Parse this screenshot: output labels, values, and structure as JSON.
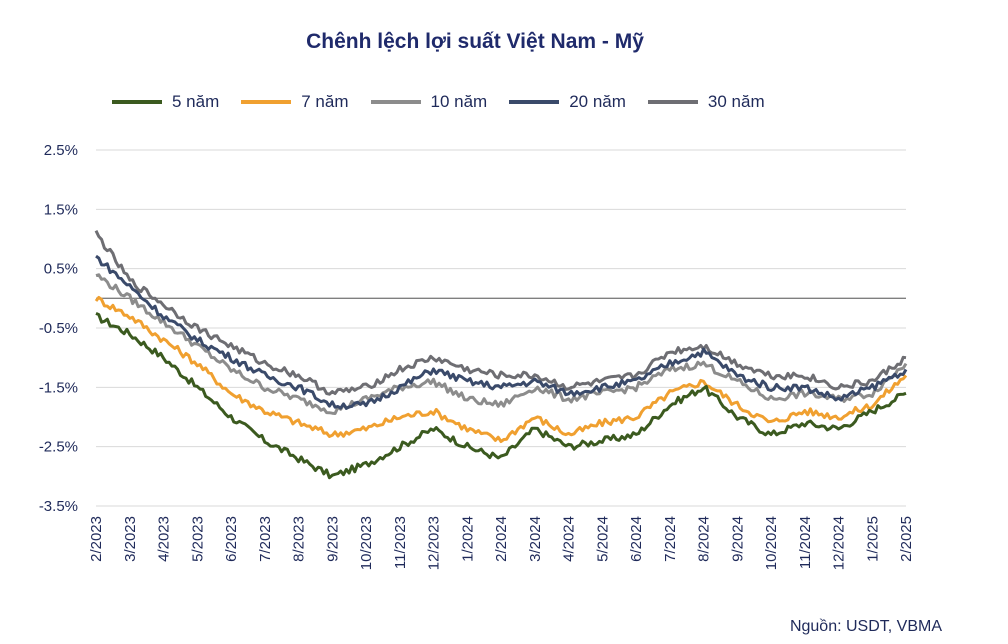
{
  "chart_data": {
    "type": "line",
    "title": "Chênh lệch lợi suất Việt Nam - Mỹ",
    "source": "Nguồn: USDT, VBMA",
    "ylim": [
      -3.5,
      2.5
    ],
    "yticks": [
      "2.5%",
      "1.5%",
      "0.5%",
      "-0.5%",
      "-1.5%",
      "-2.5%",
      "-3.5%"
    ],
    "ytick_values": [
      2.5,
      1.5,
      0.5,
      -0.5,
      -1.5,
      -2.5,
      -3.5
    ],
    "zero_line": 0,
    "x": [
      "2/2023",
      "3/2023",
      "4/2023",
      "5/2023",
      "6/2023",
      "7/2023",
      "8/2023",
      "9/2023",
      "10/2023",
      "11/2023",
      "12/2023",
      "1/2024",
      "2/2024",
      "3/2024",
      "4/2024",
      "5/2024",
      "6/2024",
      "7/2024",
      "8/2024",
      "9/2024",
      "10/2024",
      "11/2024",
      "12/2024",
      "1/2025",
      "2/2025"
    ],
    "series": [
      {
        "name": "5 năm",
        "color": "#3b5a1f",
        "values": [
          -0.3,
          -0.6,
          -1.0,
          -1.5,
          -2.0,
          -2.4,
          -2.7,
          -3.0,
          -2.8,
          -2.5,
          -2.2,
          -2.5,
          -2.7,
          -2.2,
          -2.5,
          -2.4,
          -2.3,
          -1.8,
          -1.5,
          -2.0,
          -2.3,
          -2.1,
          -2.2,
          -1.9,
          -1.6
        ]
      },
      {
        "name": "7 năm",
        "color": "#f0a030",
        "values": [
          0.0,
          -0.3,
          -0.7,
          -1.1,
          -1.6,
          -1.9,
          -2.1,
          -2.3,
          -2.2,
          -2.0,
          -1.9,
          -2.2,
          -2.4,
          -2.0,
          -2.3,
          -2.1,
          -2.0,
          -1.6,
          -1.4,
          -1.8,
          -2.1,
          -1.9,
          -2.0,
          -1.8,
          -1.3
        ]
      },
      {
        "name": "10 năm",
        "color": "#8c8c8c",
        "values": [
          0.4,
          0.0,
          -0.4,
          -0.8,
          -1.2,
          -1.5,
          -1.7,
          -1.9,
          -1.7,
          -1.5,
          -1.4,
          -1.7,
          -1.8,
          -1.5,
          -1.7,
          -1.6,
          -1.5,
          -1.2,
          -1.1,
          -1.4,
          -1.7,
          -1.6,
          -1.7,
          -1.6,
          -1.1
        ]
      },
      {
        "name": "20 năm",
        "color": "#3a4a6a",
        "values": [
          0.7,
          0.2,
          -0.3,
          -0.7,
          -1.0,
          -1.3,
          -1.5,
          -1.8,
          -1.8,
          -1.5,
          -1.2,
          -1.4,
          -1.5,
          -1.4,
          -1.6,
          -1.5,
          -1.4,
          -1.1,
          -0.9,
          -1.3,
          -1.5,
          -1.5,
          -1.7,
          -1.5,
          -1.2
        ]
      },
      {
        "name": "30 năm",
        "color": "#6e6e73",
        "values": [
          1.1,
          0.3,
          -0.1,
          -0.5,
          -0.8,
          -1.1,
          -1.3,
          -1.6,
          -1.5,
          -1.2,
          -1.0,
          -1.2,
          -1.3,
          -1.3,
          -1.5,
          -1.4,
          -1.3,
          -0.9,
          -0.8,
          -1.1,
          -1.3,
          -1.3,
          -1.5,
          -1.4,
          -1.0
        ]
      }
    ]
  }
}
